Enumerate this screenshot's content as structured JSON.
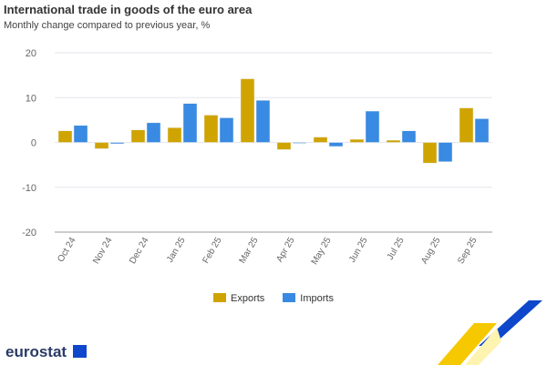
{
  "chart_data": {
    "type": "bar",
    "title": "International trade in goods of the euro area",
    "subtitle": "Monthly change compared to previous year, %",
    "categories": [
      "Oct 24",
      "Nov 24",
      "Dec 24",
      "Jan 25",
      "Feb 25",
      "Mar 25",
      "Apr 25",
      "May 25",
      "Jun 25",
      "Jul 25",
      "Aug 25",
      "Sep 25"
    ],
    "series": [
      {
        "name": "Exports",
        "color": "#cfa400",
        "values": [
          2.6,
          -1.4,
          2.8,
          3.3,
          6.1,
          14.2,
          -1.6,
          1.2,
          0.7,
          0.5,
          -4.6,
          7.7
        ]
      },
      {
        "name": "Imports",
        "color": "#388ae2",
        "values": [
          3.8,
          -0.3,
          4.4,
          8.7,
          5.5,
          9.4,
          -0.2,
          -0.9,
          7.0,
          2.6,
          -4.3,
          5.3
        ]
      }
    ],
    "yticks": [
      20,
      10,
      0,
      -10,
      -20
    ],
    "ylim": [
      -20,
      20
    ],
    "legend": "bottom-center",
    "grid": true
  },
  "branding": {
    "logo": "eurostat"
  }
}
